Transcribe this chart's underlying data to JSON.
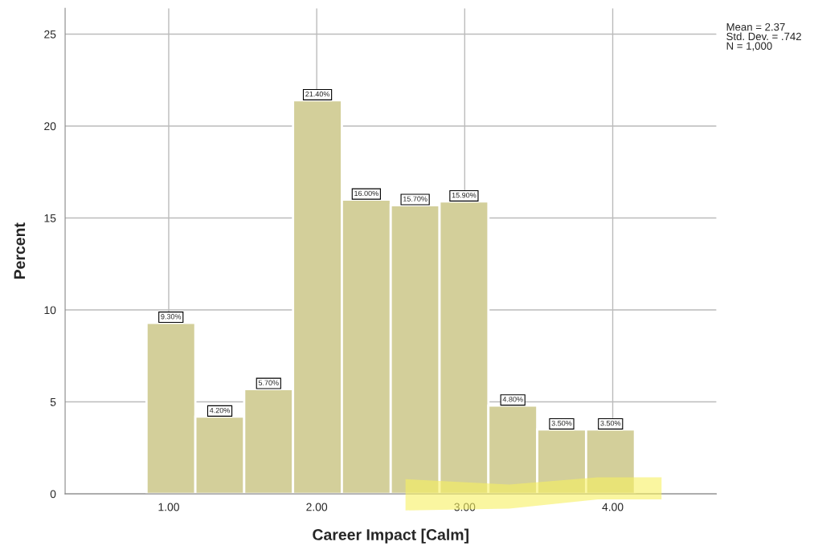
{
  "chart_data": {
    "type": "histogram",
    "xlabel": "Career Impact [Calm]",
    "ylabel": "Percent",
    "bins": [
      0.85,
      1.18,
      1.51,
      1.84,
      2.17,
      2.5,
      2.83,
      3.16,
      3.49,
      3.82,
      4.15
    ],
    "values": [
      9.3,
      4.2,
      5.7,
      21.4,
      16.0,
      15.7,
      15.9,
      4.8,
      3.5,
      3.5
    ],
    "value_labels": [
      "9.30%",
      "4.20%",
      "5.70%",
      "21.40%",
      "16.00%",
      "15.70%",
      "15.90%",
      "4.80%",
      "3.50%",
      "3.50%"
    ],
    "color": "#d3cf9a",
    "xlim": [
      0.3,
      4.7
    ],
    "xticks": [
      {
        "value": 1,
        "label": "1.00"
      },
      {
        "value": 2,
        "label": "2.00"
      },
      {
        "value": 3,
        "label": "3.00"
      },
      {
        "value": 4,
        "label": "4.00"
      }
    ],
    "ylim": [
      0,
      26.4
    ],
    "yticks": [
      0,
      5,
      10,
      15,
      20,
      25
    ],
    "grid": true,
    "legend": false,
    "annotations": [
      "Mean = 2.37\nStd. Dev. = .742\nN = 1,000"
    ]
  }
}
